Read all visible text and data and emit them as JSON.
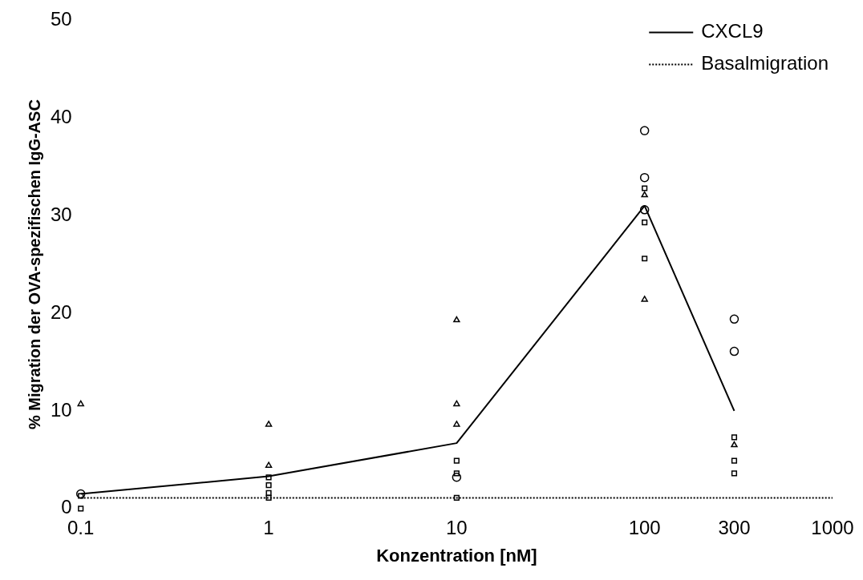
{
  "chart_data": {
    "type": "scatter",
    "xlabel": "Konzentration [nM]",
    "ylabel": "% Migration der OVA-spezifischen IgG-ASC",
    "log": "x",
    "xlim": [
      0.1,
      1000
    ],
    "xticks": [
      0.1,
      1,
      10,
      100,
      300,
      1000
    ],
    "ylim": [
      0,
      50
    ],
    "yticks": [
      0,
      10,
      20,
      30,
      40,
      50
    ],
    "grid": false,
    "legend": "top right",
    "series": [
      {
        "marker": "triangle",
        "color": "#000000",
        "x": [
          0.1,
          1,
          1,
          10,
          10,
          10,
          100,
          100,
          300
        ],
        "values": [
          10.7,
          8.6,
          4.4,
          19.3,
          10.7,
          8.6,
          32.1,
          21.4,
          6.5
        ]
      },
      {
        "marker": "square",
        "color": "#000000",
        "x": [
          300,
          300,
          300,
          100,
          100,
          100,
          10,
          10,
          10,
          1,
          1,
          1,
          1,
          0.1,
          0.1
        ],
        "values": [
          3.6,
          4.9,
          7.3,
          25.6,
          29.3,
          32.8,
          1.1,
          3.6,
          4.9,
          1.1,
          1.6,
          2.4,
          3.2,
          0,
          1.3
        ]
      },
      {
        "marker": "circle",
        "color": "#000000",
        "x": [
          300,
          300,
          100,
          100,
          100,
          10,
          0.1
        ],
        "values": [
          16.1,
          19.4,
          38.7,
          33.9,
          30.6,
          3.2,
          1.5
        ]
      },
      {
        "type": "line",
        "name": "CXCL9",
        "color": "#000000",
        "line_style": "solid",
        "marker": "none",
        "x": [
          0.1,
          1,
          10,
          100,
          300
        ],
        "values": [
          1.5,
          3.3,
          6.7,
          31,
          10
        ]
      },
      {
        "type": "line",
        "name": "Basalmigration",
        "color": "#000000",
        "line_style": "dotted",
        "marker": "none",
        "x": [
          0.1,
          1000
        ],
        "values": [
          1.1,
          1.1
        ]
      }
    ]
  }
}
